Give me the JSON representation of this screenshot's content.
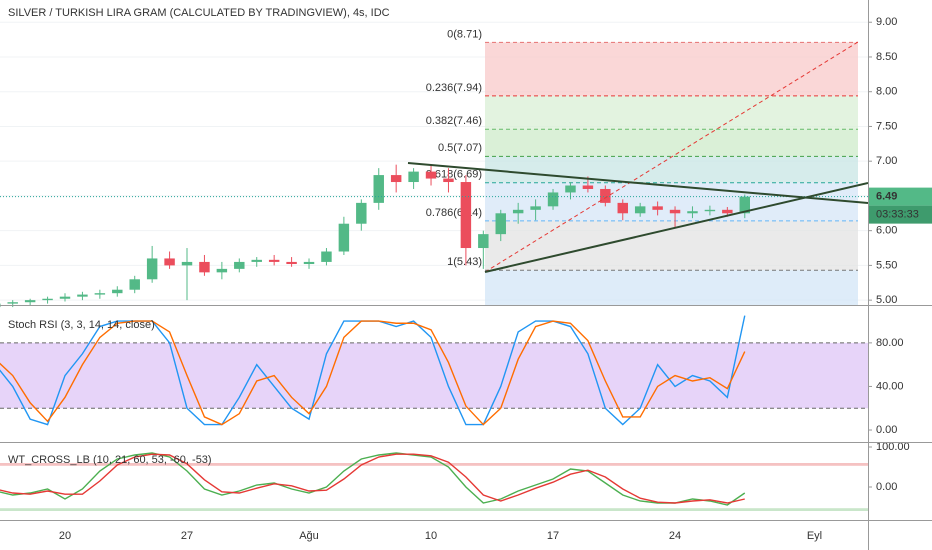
{
  "chart_data": [
    {
      "type": "candlestick",
      "title": "SILVER / TURKISH LIRA GRAM (CALCULATED BY TRADINGVIEW), 4s, IDC",
      "categories": [
        null,
        null,
        null,
        null,
        "20",
        null,
        null,
        null,
        null,
        null,
        null,
        "27",
        null,
        null,
        null,
        null,
        null,
        null,
        "Ağu",
        null,
        null,
        null,
        null,
        null,
        null,
        "10",
        null,
        null,
        null,
        null,
        null,
        null,
        "17",
        null,
        null,
        null,
        null,
        null,
        null,
        "24",
        null,
        null,
        null,
        null,
        null,
        null,
        null,
        "Eyl",
        null,
        null
      ],
      "open": [
        4.9,
        4.95,
        4.97,
        5.0,
        5.02,
        5.05,
        5.08,
        5.1,
        5.15,
        5.3,
        5.6,
        5.5,
        5.55,
        5.4,
        5.45,
        5.55,
        5.58,
        5.55,
        5.52,
        5.55,
        5.7,
        6.1,
        6.4,
        6.8,
        6.7,
        6.85,
        6.75,
        6.7,
        5.75,
        5.95,
        6.25,
        6.3,
        6.35,
        6.55,
        6.65,
        6.6,
        6.4,
        6.25,
        6.35,
        6.3,
        6.25,
        6.28,
        6.3,
        6.25,
        null,
        null,
        null,
        null,
        null,
        null
      ],
      "high": [
        4.98,
        5.0,
        5.02,
        5.05,
        5.1,
        5.12,
        5.15,
        5.2,
        5.35,
        5.78,
        5.7,
        5.75,
        5.65,
        5.55,
        5.6,
        5.62,
        5.65,
        5.62,
        5.6,
        5.75,
        6.2,
        6.45,
        6.9,
        6.95,
        6.9,
        6.95,
        6.9,
        6.8,
        6.0,
        6.3,
        6.4,
        6.45,
        6.6,
        6.7,
        6.78,
        6.65,
        6.45,
        6.4,
        6.42,
        6.35,
        6.35,
        6.36,
        6.34,
        6.52,
        null,
        null,
        null,
        null,
        null,
        null
      ],
      "low": [
        4.85,
        4.9,
        4.92,
        4.95,
        4.98,
        5.0,
        5.02,
        5.05,
        5.1,
        5.25,
        5.45,
        5.0,
        5.35,
        5.3,
        5.4,
        5.48,
        5.5,
        5.48,
        5.45,
        5.5,
        5.65,
        6.0,
        6.3,
        6.55,
        6.6,
        6.65,
        6.55,
        5.5,
        5.45,
        5.85,
        6.1,
        6.15,
        6.3,
        6.45,
        6.55,
        6.35,
        6.15,
        6.2,
        6.22,
        6.05,
        6.18,
        6.22,
        6.2,
        6.18,
        null,
        null,
        null,
        null,
        null,
        null
      ],
      "close": [
        4.95,
        4.97,
        5.0,
        5.02,
        5.05,
        5.08,
        5.1,
        5.15,
        5.3,
        5.6,
        5.5,
        5.55,
        5.4,
        5.45,
        5.55,
        5.58,
        5.55,
        5.52,
        5.55,
        5.7,
        6.1,
        6.4,
        6.8,
        6.7,
        6.85,
        6.75,
        6.7,
        5.75,
        5.95,
        6.25,
        6.3,
        6.35,
        6.55,
        6.65,
        6.6,
        6.4,
        6.25,
        6.35,
        6.3,
        6.25,
        6.28,
        6.3,
        6.25,
        6.49,
        null,
        null,
        null,
        null,
        null,
        null
      ],
      "up_color": "#53b987",
      "down_color": "#eb4d5c",
      "ylim": [
        4.93,
        9.32
      ],
      "yticks": [
        {
          "value": 5,
          "label": "5.00"
        },
        {
          "value": 5.5,
          "label": "5.50"
        },
        {
          "value": 6,
          "label": "6.00"
        },
        {
          "value": 6.5,
          "label": "6.50"
        },
        {
          "value": 7,
          "label": "7.00"
        },
        {
          "value": 7.5,
          "label": "7.50"
        },
        {
          "value": 8,
          "label": "8.00"
        },
        {
          "value": 8.5,
          "label": "8.50"
        },
        {
          "value": 9,
          "label": "9.00"
        }
      ],
      "grid": true,
      "fib_levels": [
        {
          "label": "0(8.71)",
          "price": 8.71,
          "color": "#e57373",
          "fill": "#f8c9c9"
        },
        {
          "label": "0.236(7.94)",
          "price": 7.94,
          "color": "#e53935",
          "fill": "#d9efd6"
        },
        {
          "label": "0.382(7.46)",
          "price": 7.46,
          "color": "#66bb6a",
          "fill": "#cdebc9"
        },
        {
          "label": "0.5(7.07)",
          "price": 7.07,
          "color": "#43a047",
          "fill": "#c8e6e4"
        },
        {
          "label": "0.618(6.69)",
          "price": 6.69,
          "color": "#26a69a",
          "fill": "#d6e6f7"
        },
        {
          "label": "0.786(6.14)",
          "price": 6.14,
          "color": "#64b5f6",
          "fill": "#e3e3e3"
        },
        {
          "label": "1(5.43)",
          "price": 5.43,
          "color": "#777777",
          "fill": "#d3e5f7"
        }
      ],
      "last_price": 6.49,
      "countdown": "03:33:33"
    },
    {
      "type": "line",
      "title": "Stoch RSI (3, 3, 14, 14, close)",
      "series": [
        {
          "color": "#2196f3",
          "values": [
            60,
            40,
            10,
            5,
            50,
            70,
            95,
            100,
            100,
            100,
            80,
            20,
            5,
            5,
            30,
            60,
            40,
            20,
            10,
            70,
            100,
            100,
            100,
            95,
            100,
            85,
            40,
            5,
            5,
            40,
            90,
            100,
            100,
            95,
            70,
            20,
            5,
            20,
            60,
            40,
            50,
            45,
            30,
            105
          ]
        },
        {
          "color": "#ff6d00",
          "values": [
            65,
            50,
            25,
            8,
            30,
            60,
            85,
            98,
            100,
            100,
            90,
            50,
            12,
            5,
            15,
            45,
            50,
            30,
            15,
            40,
            85,
            100,
            100,
            98,
            98,
            92,
            62,
            22,
            5,
            20,
            65,
            95,
            100,
            98,
            82,
            45,
            12,
            12,
            40,
            50,
            45,
            48,
            38,
            72
          ]
        }
      ],
      "bands": [
        20,
        80
      ],
      "band_fill": "#e1c9f7",
      "ylim": [
        -11,
        112
      ],
      "yticks": [
        {
          "value": 0,
          "label": "0.00"
        },
        {
          "value": 40,
          "label": "40.00"
        },
        {
          "value": 80,
          "label": "80.00"
        }
      ]
    },
    {
      "type": "line",
      "title": "WT_CROSS_LB (10, 21, 60, 53, -60, -53)",
      "series": [
        {
          "color": "#4caf50",
          "values": [
            -10,
            -20,
            -15,
            -5,
            -30,
            -5,
            40,
            70,
            80,
            85,
            75,
            40,
            -5,
            -20,
            -10,
            5,
            10,
            -5,
            -15,
            0,
            40,
            70,
            80,
            85,
            80,
            75,
            50,
            0,
            -40,
            -30,
            -10,
            5,
            20,
            45,
            40,
            10,
            -20,
            -35,
            -40,
            -40,
            -30,
            -35,
            -45,
            -15
          ]
        },
        {
          "color": "#e53935",
          "values": [
            -5,
            -15,
            -18,
            -10,
            -18,
            -18,
            15,
            55,
            75,
            82,
            80,
            58,
            18,
            -12,
            -15,
            -3,
            8,
            3,
            -10,
            -8,
            20,
            55,
            75,
            82,
            82,
            78,
            62,
            25,
            -20,
            -35,
            -20,
            -3,
            12,
            32,
            42,
            25,
            -5,
            -28,
            -38,
            -40,
            -35,
            -32,
            -40,
            -30
          ]
        }
      ],
      "bands": [
        [
          53,
          60
        ],
        [
          -60,
          -53
        ]
      ],
      "band_colors": [
        "#ef9a9a",
        "#a5d6a7"
      ],
      "ylim": [
        -82.5,
        107.5
      ],
      "yticks": [
        {
          "value": 0,
          "label": "0.00"
        },
        {
          "value": 100,
          "label": "100.00"
        }
      ]
    }
  ]
}
